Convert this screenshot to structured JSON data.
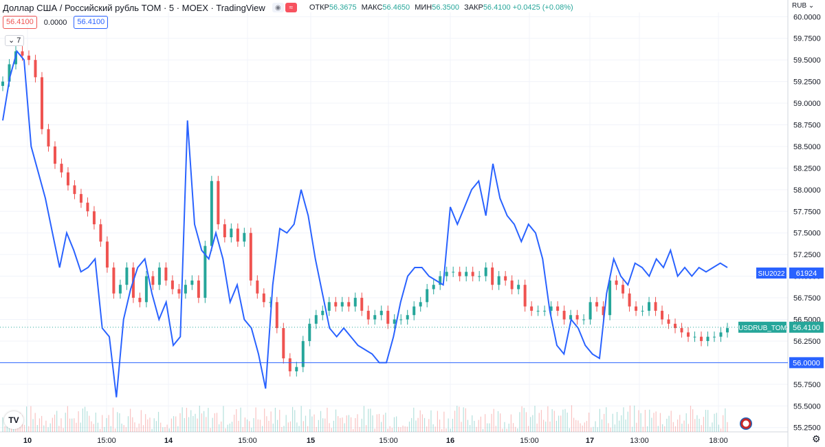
{
  "header": {
    "symbol": "Доллар США / Российский рубль TOM · 5 · MOEX · TradingView",
    "ohlc": [
      {
        "k": "ОТКР",
        "v": "56.3675"
      },
      {
        "k": "МАКС",
        "v": "56.4650"
      },
      {
        "k": "МИН",
        "v": "56.3500"
      },
      {
        "k": "ЗАКР",
        "v": "56.4100"
      }
    ],
    "change": "+0.0425 (+0.08%)",
    "price_box_left": "56.4100",
    "mid_value": "0.0000",
    "price_box_right": "56.4100",
    "compare_count": "7",
    "currency": "RUB",
    "logo": "TV"
  },
  "icons": {
    "visibility": "eye-icon",
    "compare": "wave-icon",
    "settings": "gear-icon",
    "flag": "us-flag-icon",
    "logo": "tradingview-logo-icon",
    "currency_menu": "chevron-down-icon"
  },
  "colors": {
    "up": "#26a69a",
    "down": "#ef5350",
    "compare": "#2962ff",
    "level": "#2962ff",
    "grid": "#f0f3fa",
    "axis_text": "#131722"
  },
  "chart_data": {
    "type": "line",
    "title": "Доллар США / Российский рубль TOM",
    "interval": "5",
    "exchange": "MOEX",
    "ylim": [
      55.25,
      60.0
    ],
    "y_ticks": [
      "60.0000",
      "59.7500",
      "59.5000",
      "59.2500",
      "59.0000",
      "58.7500",
      "58.5000",
      "58.2500",
      "58.0000",
      "57.7500",
      "57.5000",
      "57.2500",
      "57.0000",
      "56.7500",
      "56.5000",
      "56.2500",
      "56.0000",
      "55.7500",
      "55.5000",
      "55.2500"
    ],
    "x_ticks": [
      "10",
      "15:00",
      "14",
      "15:00",
      "15",
      "15:00",
      "16",
      "15:00",
      "17",
      "13:00",
      "18:00"
    ],
    "horizontal_level": {
      "value": 56.0,
      "label": "56.0000"
    },
    "series": [
      {
        "name": "USDRUB_TOM",
        "label": "USDRUB_TOM",
        "last": "56.4100",
        "style": "candles",
        "close": [
          59.25,
          59.45,
          59.6,
          59.55,
          59.5,
          59.3,
          58.7,
          58.5,
          58.3,
          58.2,
          58.05,
          57.95,
          57.85,
          57.75,
          57.6,
          57.4,
          57.1,
          56.8,
          56.9,
          57.1,
          56.75,
          56.7,
          57.0,
          56.9,
          57.1,
          56.95,
          56.85,
          56.8,
          56.9,
          56.95,
          56.75,
          57.35,
          58.1,
          57.6,
          57.45,
          57.55,
          57.4,
          57.5,
          56.95,
          56.8,
          56.7,
          56.7,
          56.4,
          56.05,
          55.9,
          55.95,
          56.25,
          56.45,
          56.55,
          56.6,
          56.7,
          56.65,
          56.7,
          56.65,
          56.75,
          56.6,
          56.5,
          56.55,
          56.6,
          56.45,
          56.5,
          56.5,
          56.55,
          56.65,
          56.7,
          56.85,
          56.9,
          57.0,
          57.05,
          57.05,
          57.0,
          57.05,
          57.0,
          57.0,
          57.1,
          56.9,
          57.0,
          56.95,
          56.85,
          56.9,
          56.65,
          56.6,
          56.6,
          56.6,
          56.65,
          56.6,
          56.5,
          56.55,
          56.5,
          56.5,
          56.7,
          56.65,
          56.55,
          56.95,
          56.9,
          56.8,
          56.65,
          56.6,
          56.6,
          56.7,
          56.6,
          56.5,
          56.45,
          56.4,
          56.35,
          56.3,
          56.3,
          56.25,
          56.3,
          56.3,
          56.35,
          56.4
        ]
      },
      {
        "name": "SIU2022",
        "label": "SIU2022",
        "last": "61924",
        "style": "line",
        "values": [
          58.8,
          59.3,
          59.6,
          59.5,
          58.5,
          58.2,
          57.9,
          57.5,
          57.1,
          57.5,
          57.3,
          57.05,
          57.1,
          57.2,
          56.4,
          56.3,
          55.6,
          56.5,
          56.85,
          57.1,
          57.2,
          56.8,
          56.5,
          56.7,
          56.2,
          56.3,
          58.8,
          57.6,
          57.3,
          57.2,
          57.5,
          57.2,
          56.7,
          56.9,
          56.5,
          56.4,
          56.1,
          55.7,
          56.9,
          57.55,
          57.5,
          57.6,
          58.0,
          57.7,
          57.2,
          56.8,
          56.4,
          56.3,
          56.4,
          56.3,
          56.2,
          56.15,
          56.1,
          56.0,
          56.0,
          56.3,
          56.7,
          57.0,
          57.1,
          57.1,
          57.0,
          56.95,
          56.9,
          57.8,
          57.6,
          57.8,
          58.0,
          58.1,
          57.7,
          58.3,
          57.9,
          57.7,
          57.6,
          57.4,
          57.6,
          57.5,
          57.2,
          56.6,
          56.2,
          56.1,
          56.5,
          56.4,
          56.2,
          56.1,
          56.05,
          56.8,
          57.2,
          57.0,
          56.9,
          57.15,
          57.1,
          57.0,
          57.2,
          57.1,
          57.3,
          57.0,
          57.1,
          57.0,
          57.1,
          57.05,
          57.1,
          57.15,
          57.1
        ]
      }
    ],
    "volume": {
      "visible": true
    }
  }
}
